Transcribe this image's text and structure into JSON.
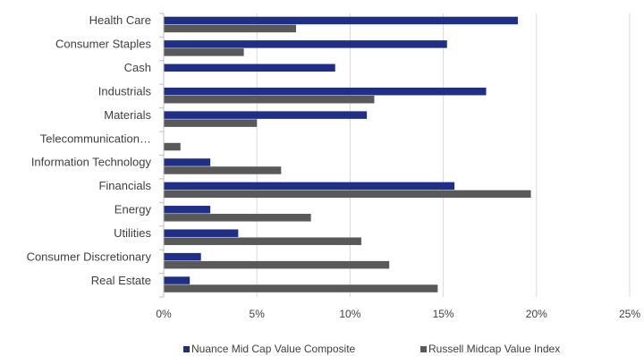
{
  "chart_data": {
    "type": "bar",
    "orientation": "horizontal",
    "categories": [
      "Health Care",
      "Consumer Staples",
      "Cash",
      "Industrials",
      "Materials",
      "Telecommunication…",
      "Information Technology",
      "Financials",
      "Energy",
      "Utilities",
      "Consumer Discretionary",
      "Real Estate"
    ],
    "series": [
      {
        "name": "Nuance Mid Cap Value Composite",
        "color": "#1f2f86",
        "values": [
          19.0,
          15.2,
          9.2,
          17.3,
          10.9,
          0.0,
          2.5,
          15.6,
          2.5,
          4.0,
          2.0,
          1.4
        ]
      },
      {
        "name": "Russell Midcap Value Index",
        "color": "#595959",
        "values": [
          7.1,
          4.3,
          0.0,
          11.3,
          5.0,
          0.9,
          6.3,
          19.7,
          7.9,
          10.6,
          12.1,
          14.7
        ]
      }
    ],
    "xlim": [
      0,
      25
    ],
    "xticks": [
      "0%",
      "5%",
      "10%",
      "15%",
      "20%",
      "25%"
    ],
    "grid": true,
    "legend_position": "bottom"
  }
}
